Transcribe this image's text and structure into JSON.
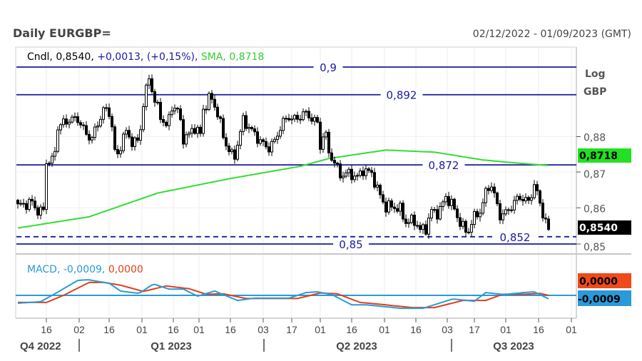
{
  "header": {
    "title": "Daily EURGBP=",
    "date_range": "02/12/2022 - 01/09/2023 (GMT)"
  },
  "legend": {
    "cndl": "Cndl,",
    "last": "0,8540,",
    "change": "+0,0013,",
    "pct": "(+0,15%),",
    "sma_label": "SMA,",
    "sma_value": "0,8718"
  },
  "axis": {
    "scale": "Log",
    "currency": "GBP",
    "y_ticks": [
      "0,88",
      "0,87",
      "0,86",
      "0,85"
    ]
  },
  "levels": [
    {
      "value": 0.9,
      "label": "0,9",
      "style": "solid"
    },
    {
      "value": 0.892,
      "label": "0,892",
      "style": "solid"
    },
    {
      "value": 0.872,
      "label": "0,872",
      "style": "solid"
    },
    {
      "value": 0.852,
      "label": "0,852",
      "style": "dashed"
    },
    {
      "value": 0.85,
      "label": "0,85",
      "style": "solid"
    }
  ],
  "price_tags": {
    "sma": "0,8718",
    "last": "0,8540",
    "signal": "0,0000",
    "macd": "-0,0009"
  },
  "macd_legend": {
    "label": "MACD,",
    "macd": "-0,0009,",
    "signal": "0,0000"
  },
  "x_axis": {
    "ticks": [
      "16",
      "02",
      "16",
      "01",
      "16",
      "01",
      "16",
      "03",
      "17",
      "01",
      "16",
      "01",
      "16",
      "03",
      "17",
      "01",
      "16",
      "01"
    ],
    "quarters": [
      "Q4 2022",
      "Q1 2023",
      "Q2 2023",
      "Q3 2023"
    ]
  },
  "colors": {
    "level": "#1a1aa0",
    "sma": "#33dd33",
    "macd": "#2a9ad8",
    "signal": "#e0401a",
    "candle": "#000000"
  },
  "chart_data": {
    "type": "candlestick",
    "title": "Daily EURGBP=",
    "ylabel": "GBP",
    "yscale": "log",
    "ylim": [
      0.846,
      0.902
    ],
    "x_unit": "trading day index from 02/12/2022",
    "x_tick_days": [
      10,
      21.5,
      32,
      43.5,
      54.5,
      63.5,
      74.5,
      86,
      96,
      106,
      117,
      128.5,
      139.5,
      150.5,
      160,
      171,
      182.5,
      194
    ],
    "close_keypoints": [
      [
        0,
        0.8605
      ],
      [
        5,
        0.8615
      ],
      [
        7.5,
        0.8585
      ],
      [
        9,
        0.8595
      ],
      [
        9.5,
        0.873
      ],
      [
        12.5,
        0.873
      ],
      [
        14,
        0.8827
      ],
      [
        17.5,
        0.8847
      ],
      [
        21,
        0.8851
      ],
      [
        24,
        0.8806
      ],
      [
        26,
        0.8796
      ],
      [
        30,
        0.8877
      ],
      [
        32.5,
        0.8867
      ],
      [
        34,
        0.8756
      ],
      [
        35,
        0.8746
      ],
      [
        37.5,
        0.8817
      ],
      [
        40,
        0.8786
      ],
      [
        42.5,
        0.8786
      ],
      [
        44,
        0.8897
      ],
      [
        46,
        0.8968
      ],
      [
        47.5,
        0.8917
      ],
      [
        50,
        0.8857
      ],
      [
        52.5,
        0.8827
      ],
      [
        54,
        0.8887
      ],
      [
        56,
        0.8877
      ],
      [
        58,
        0.8796
      ],
      [
        60,
        0.8806
      ],
      [
        62,
        0.8827
      ],
      [
        64,
        0.8806
      ],
      [
        65,
        0.8877
      ],
      [
        67.5,
        0.8917
      ],
      [
        70,
        0.8867
      ],
      [
        72.5,
        0.8786
      ],
      [
        75,
        0.8746
      ],
      [
        76,
        0.8746
      ],
      [
        79,
        0.8847
      ],
      [
        81,
        0.8827
      ],
      [
        84,
        0.8796
      ],
      [
        87.5,
        0.8766
      ],
      [
        90,
        0.8786
      ],
      [
        92.5,
        0.8837
      ],
      [
        95,
        0.8857
      ],
      [
        97.5,
        0.8847
      ],
      [
        100,
        0.8867
      ],
      [
        102.5,
        0.8857
      ],
      [
        105,
        0.8837
      ],
      [
        106,
        0.8772
      ],
      [
        107.5,
        0.8821
      ],
      [
        109,
        0.8756
      ],
      [
        111,
        0.8726
      ],
      [
        113,
        0.8692
      ],
      [
        116,
        0.8696
      ],
      [
        119,
        0.8685
      ],
      [
        121,
        0.8706
      ],
      [
        124,
        0.8696
      ],
      [
        126,
        0.8651
      ],
      [
        129,
        0.8601
      ],
      [
        131,
        0.8605
      ],
      [
        134,
        0.8595
      ],
      [
        136,
        0.856
      ],
      [
        139,
        0.8565
      ],
      [
        141,
        0.8538
      ],
      [
        143,
        0.8544
      ],
      [
        145,
        0.8591
      ],
      [
        147.5,
        0.8585
      ],
      [
        150,
        0.8631
      ],
      [
        152.5,
        0.8605
      ],
      [
        155,
        0.8558
      ],
      [
        157.5,
        0.853
      ],
      [
        160,
        0.8575
      ],
      [
        162.5,
        0.8595
      ],
      [
        164.5,
        0.8659
      ],
      [
        166,
        0.8661
      ],
      [
        169,
        0.8579
      ],
      [
        171,
        0.8585
      ],
      [
        174,
        0.8615
      ],
      [
        176,
        0.8631
      ],
      [
        179,
        0.8615
      ],
      [
        181,
        0.8665
      ],
      [
        182.5,
        0.8625
      ],
      [
        184,
        0.8585
      ],
      [
        186,
        0.854
      ]
    ],
    "last_close": 0.854,
    "sma": [
      [
        0,
        0.8544
      ],
      [
        25,
        0.8575
      ],
      [
        49,
        0.8641
      ],
      [
        74,
        0.8681
      ],
      [
        99,
        0.8716
      ],
      [
        109,
        0.8738
      ],
      [
        129,
        0.8762
      ],
      [
        146,
        0.8756
      ],
      [
        163,
        0.8734
      ],
      [
        171,
        0.8728
      ],
      [
        186,
        0.8718
      ]
    ],
    "macd": [
      [
        0,
        -0.002
      ],
      [
        8,
        -0.0016
      ],
      [
        13,
        0.0004
      ],
      [
        21,
        0.0038
      ],
      [
        24.5,
        0.004
      ],
      [
        32,
        0.0031
      ],
      [
        36,
        0.0011
      ],
      [
        42.5,
        0.0005
      ],
      [
        47.5,
        0.0029
      ],
      [
        53,
        0.0016
      ],
      [
        58,
        0.0016
      ],
      [
        63,
        -0.0002
      ],
      [
        69,
        0.0011
      ],
      [
        77,
        -0.0013
      ],
      [
        83,
        -0.0007
      ],
      [
        95,
        -0.0007
      ],
      [
        101,
        0.0007
      ],
      [
        105,
        0.0009
      ],
      [
        110,
        0.0002
      ],
      [
        117,
        -0.0024
      ],
      [
        122,
        -0.0024
      ],
      [
        134.5,
        -0.0033
      ],
      [
        142,
        -0.0033
      ],
      [
        152.5,
        -0.0009
      ],
      [
        160,
        -0.0015
      ],
      [
        164,
        0.0007
      ],
      [
        170.5,
        0.0002
      ],
      [
        177,
        0.0007
      ],
      [
        181,
        0.0009
      ],
      [
        186,
        -0.0009
      ]
    ],
    "signal": [
      [
        0,
        -0.0018
      ],
      [
        10,
        -0.0018
      ],
      [
        16,
        0.0
      ],
      [
        25,
        0.0033
      ],
      [
        30,
        0.0033
      ],
      [
        36,
        0.0026
      ],
      [
        44,
        0.001
      ],
      [
        52,
        0.0024
      ],
      [
        60,
        0.0017
      ],
      [
        66,
        0.0003
      ],
      [
        72,
        0.0004
      ],
      [
        80,
        -0.0008
      ],
      [
        98,
        -0.0008
      ],
      [
        106,
        0.0006
      ],
      [
        112,
        0.0004
      ],
      [
        120,
        -0.0018
      ],
      [
        126,
        -0.0022
      ],
      [
        138,
        -0.0031
      ],
      [
        146,
        -0.0031
      ],
      [
        156,
        -0.0013
      ],
      [
        164,
        -0.0013
      ],
      [
        170,
        0.0003
      ],
      [
        178,
        0.0003
      ],
      [
        183,
        0.0005
      ],
      [
        186,
        0.0
      ]
    ]
  }
}
